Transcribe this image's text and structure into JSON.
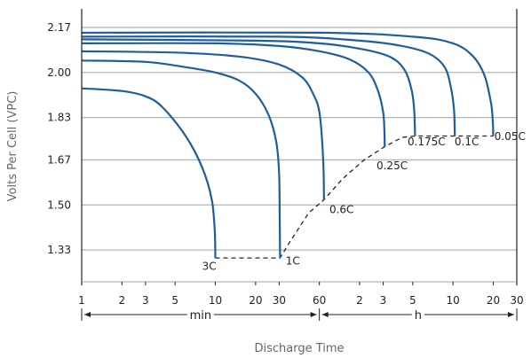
{
  "chart_data": {
    "type": "line",
    "xlabel": "Discharge Time",
    "ylabel": "Volts Per Cell (VPC)",
    "x_scale": "log",
    "x_unit": "minutes",
    "xlim": [
      1,
      1800
    ],
    "ylim": [
      1.21,
      2.24
    ],
    "y_ticks": [
      2.17,
      2.0,
      1.83,
      1.67,
      1.5,
      1.33
    ],
    "x_ticks": [
      {
        "label": "1",
        "minutes": 1
      },
      {
        "label": "2",
        "minutes": 2
      },
      {
        "label": "3",
        "minutes": 3
      },
      {
        "label": "5",
        "minutes": 5
      },
      {
        "label": "10",
        "minutes": 10
      },
      {
        "label": "20",
        "minutes": 20
      },
      {
        "label": "30",
        "minutes": 30
      },
      {
        "label": "60",
        "minutes": 60
      },
      {
        "label": "2",
        "minutes": 120
      },
      {
        "label": "3",
        "minutes": 180
      },
      {
        "label": "5",
        "minutes": 300
      },
      {
        "label": "10",
        "minutes": 600
      },
      {
        "label": "20",
        "minutes": 1200
      },
      {
        "label": "30",
        "minutes": 1800
      }
    ],
    "time_ranges": [
      {
        "label": "min",
        "from": 1,
        "to": 60
      },
      {
        "label": "h",
        "from": 60,
        "to": 1800
      }
    ],
    "grid": true,
    "series": [
      {
        "name": "3C",
        "color": "#1f5f99",
        "points": [
          [
            1,
            1.94
          ],
          [
            2,
            1.93
          ],
          [
            3,
            1.91
          ],
          [
            4,
            1.87
          ],
          [
            6,
            1.76
          ],
          [
            8,
            1.64
          ],
          [
            9.4,
            1.52
          ],
          [
            9.9,
            1.4
          ],
          [
            10,
            1.3
          ]
        ]
      },
      {
        "name": "1C",
        "color": "#1f5f99",
        "points": [
          [
            1,
            2.045
          ],
          [
            3,
            2.04
          ],
          [
            6,
            2.02
          ],
          [
            10,
            2.0
          ],
          [
            15,
            1.97
          ],
          [
            20,
            1.92
          ],
          [
            25,
            1.84
          ],
          [
            28.5,
            1.74
          ],
          [
            30,
            1.62
          ],
          [
            30.3,
            1.45
          ],
          [
            30.5,
            1.3
          ]
        ]
      },
      {
        "name": "0.6C",
        "color": "#1f5f99",
        "points": [
          [
            1,
            2.08
          ],
          [
            5,
            2.075
          ],
          [
            15,
            2.06
          ],
          [
            30,
            2.03
          ],
          [
            45,
            1.98
          ],
          [
            55,
            1.91
          ],
          [
            60,
            1.85
          ],
          [
            63,
            1.74
          ],
          [
            64.5,
            1.63
          ],
          [
            65,
            1.52
          ]
        ]
      },
      {
        "name": "0.25C",
        "color": "#1f5f99",
        "points": [
          [
            1,
            2.11
          ],
          [
            10,
            2.11
          ],
          [
            30,
            2.1
          ],
          [
            60,
            2.08
          ],
          [
            100,
            2.05
          ],
          [
            140,
            2.0
          ],
          [
            165,
            1.93
          ],
          [
            180,
            1.85
          ],
          [
            184,
            1.78
          ],
          [
            185,
            1.72
          ]
        ]
      },
      {
        "name": "0.175C",
        "color": "#1f5f99",
        "points": [
          [
            1,
            2.125
          ],
          [
            20,
            2.12
          ],
          [
            60,
            2.11
          ],
          [
            120,
            2.09
          ],
          [
            200,
            2.06
          ],
          [
            260,
            2.01
          ],
          [
            295,
            1.93
          ],
          [
            308,
            1.85
          ],
          [
            312,
            1.76
          ]
        ]
      },
      {
        "name": "0.1C",
        "color": "#1f5f99",
        "points": [
          [
            1,
            2.135
          ],
          [
            30,
            2.135
          ],
          [
            120,
            2.12
          ],
          [
            250,
            2.1
          ],
          [
            400,
            2.07
          ],
          [
            520,
            2.02
          ],
          [
            580,
            1.94
          ],
          [
            610,
            1.86
          ],
          [
            620,
            1.76
          ]
        ]
      },
      {
        "name": "0.05C",
        "color": "#1f5f99",
        "points": [
          [
            1,
            2.15
          ],
          [
            60,
            2.15
          ],
          [
            300,
            2.135
          ],
          [
            600,
            2.11
          ],
          [
            850,
            2.06
          ],
          [
            1030,
            1.99
          ],
          [
            1150,
            1.89
          ],
          [
            1190,
            1.82
          ],
          [
            1200,
            1.76
          ]
        ]
      }
    ],
    "end_voltage_line": {
      "style": "dashed",
      "color": "#222222",
      "points": [
        [
          10,
          1.3
        ],
        [
          30.5,
          1.3
        ],
        [
          36,
          1.36
        ],
        [
          50,
          1.47
        ],
        [
          65,
          1.52
        ],
        [
          90,
          1.6
        ],
        [
          130,
          1.67
        ],
        [
          185,
          1.72
        ],
        [
          250,
          1.755
        ],
        [
          312,
          1.76
        ],
        [
          1200,
          1.76
        ]
      ]
    },
    "annotations": [
      {
        "text": "3C",
        "x": 9,
        "y": 1.255
      },
      {
        "text": "1C",
        "x": 38,
        "y": 1.275
      },
      {
        "text": "0.6C",
        "x": 88,
        "y": 1.47
      },
      {
        "text": "0.25C",
        "x": 210,
        "y": 1.635
      },
      {
        "text": "0.175C",
        "x": 380,
        "y": 1.725
      },
      {
        "text": "0.1C",
        "x": 760,
        "y": 1.725
      },
      {
        "text": "0.05C",
        "x": 1600,
        "y": 1.745
      }
    ]
  }
}
